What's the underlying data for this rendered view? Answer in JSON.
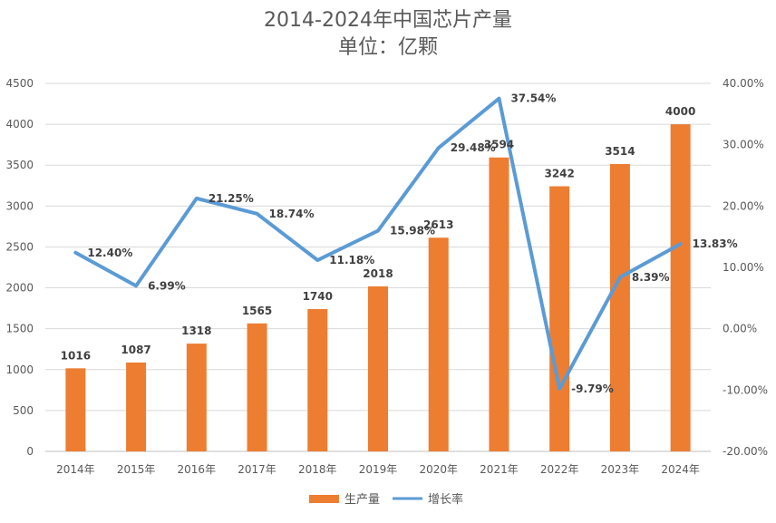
{
  "chart_data": {
    "type": "bar",
    "title": "2014-2024年中国芯片产量",
    "subtitle": "单位：亿颗",
    "categories": [
      "2014年",
      "2015年",
      "2016年",
      "2017年",
      "2018年",
      "2019年",
      "2020年",
      "2021年",
      "2022年",
      "2023年",
      "2024年"
    ],
    "series": [
      {
        "name": "生产量",
        "type": "bar",
        "axis": "left",
        "color": "#ED7D31",
        "values": [
          1016,
          1087,
          1318,
          1565,
          1740,
          2018,
          2613,
          3594,
          3242,
          3514,
          4000
        ]
      },
      {
        "name": "增长率",
        "type": "line",
        "axis": "right",
        "color": "#5B9BD5",
        "values": [
          12.4,
          6.99,
          21.25,
          18.74,
          11.18,
          15.98,
          29.48,
          37.54,
          -9.79,
          8.39,
          13.83
        ]
      }
    ],
    "bar_labels": [
      "1016",
      "1087",
      "1318",
      "1565",
      "1740",
      "2018",
      "2613",
      "3594",
      "3242",
      "3514",
      "4000"
    ],
    "line_labels": [
      "12.40%",
      "6.99%",
      "21.25%",
      "18.74%",
      "11.18%",
      "15.98%",
      "29.48%",
      "37.54%",
      "-9.79%",
      "8.39%",
      "13.83%"
    ],
    "y_left": {
      "min": 0,
      "max": 4500,
      "ticks": [
        "0",
        "500",
        "1000",
        "1500",
        "2000",
        "2500",
        "3000",
        "3500",
        "4000",
        "4500"
      ]
    },
    "y_right": {
      "min": -20,
      "max": 40,
      "ticks": [
        "-20.00%",
        "-10.00%",
        "0.00%",
        "10.00%",
        "20.00%",
        "30.00%",
        "40.00%"
      ]
    },
    "grid": true,
    "legend_position": "bottom"
  }
}
